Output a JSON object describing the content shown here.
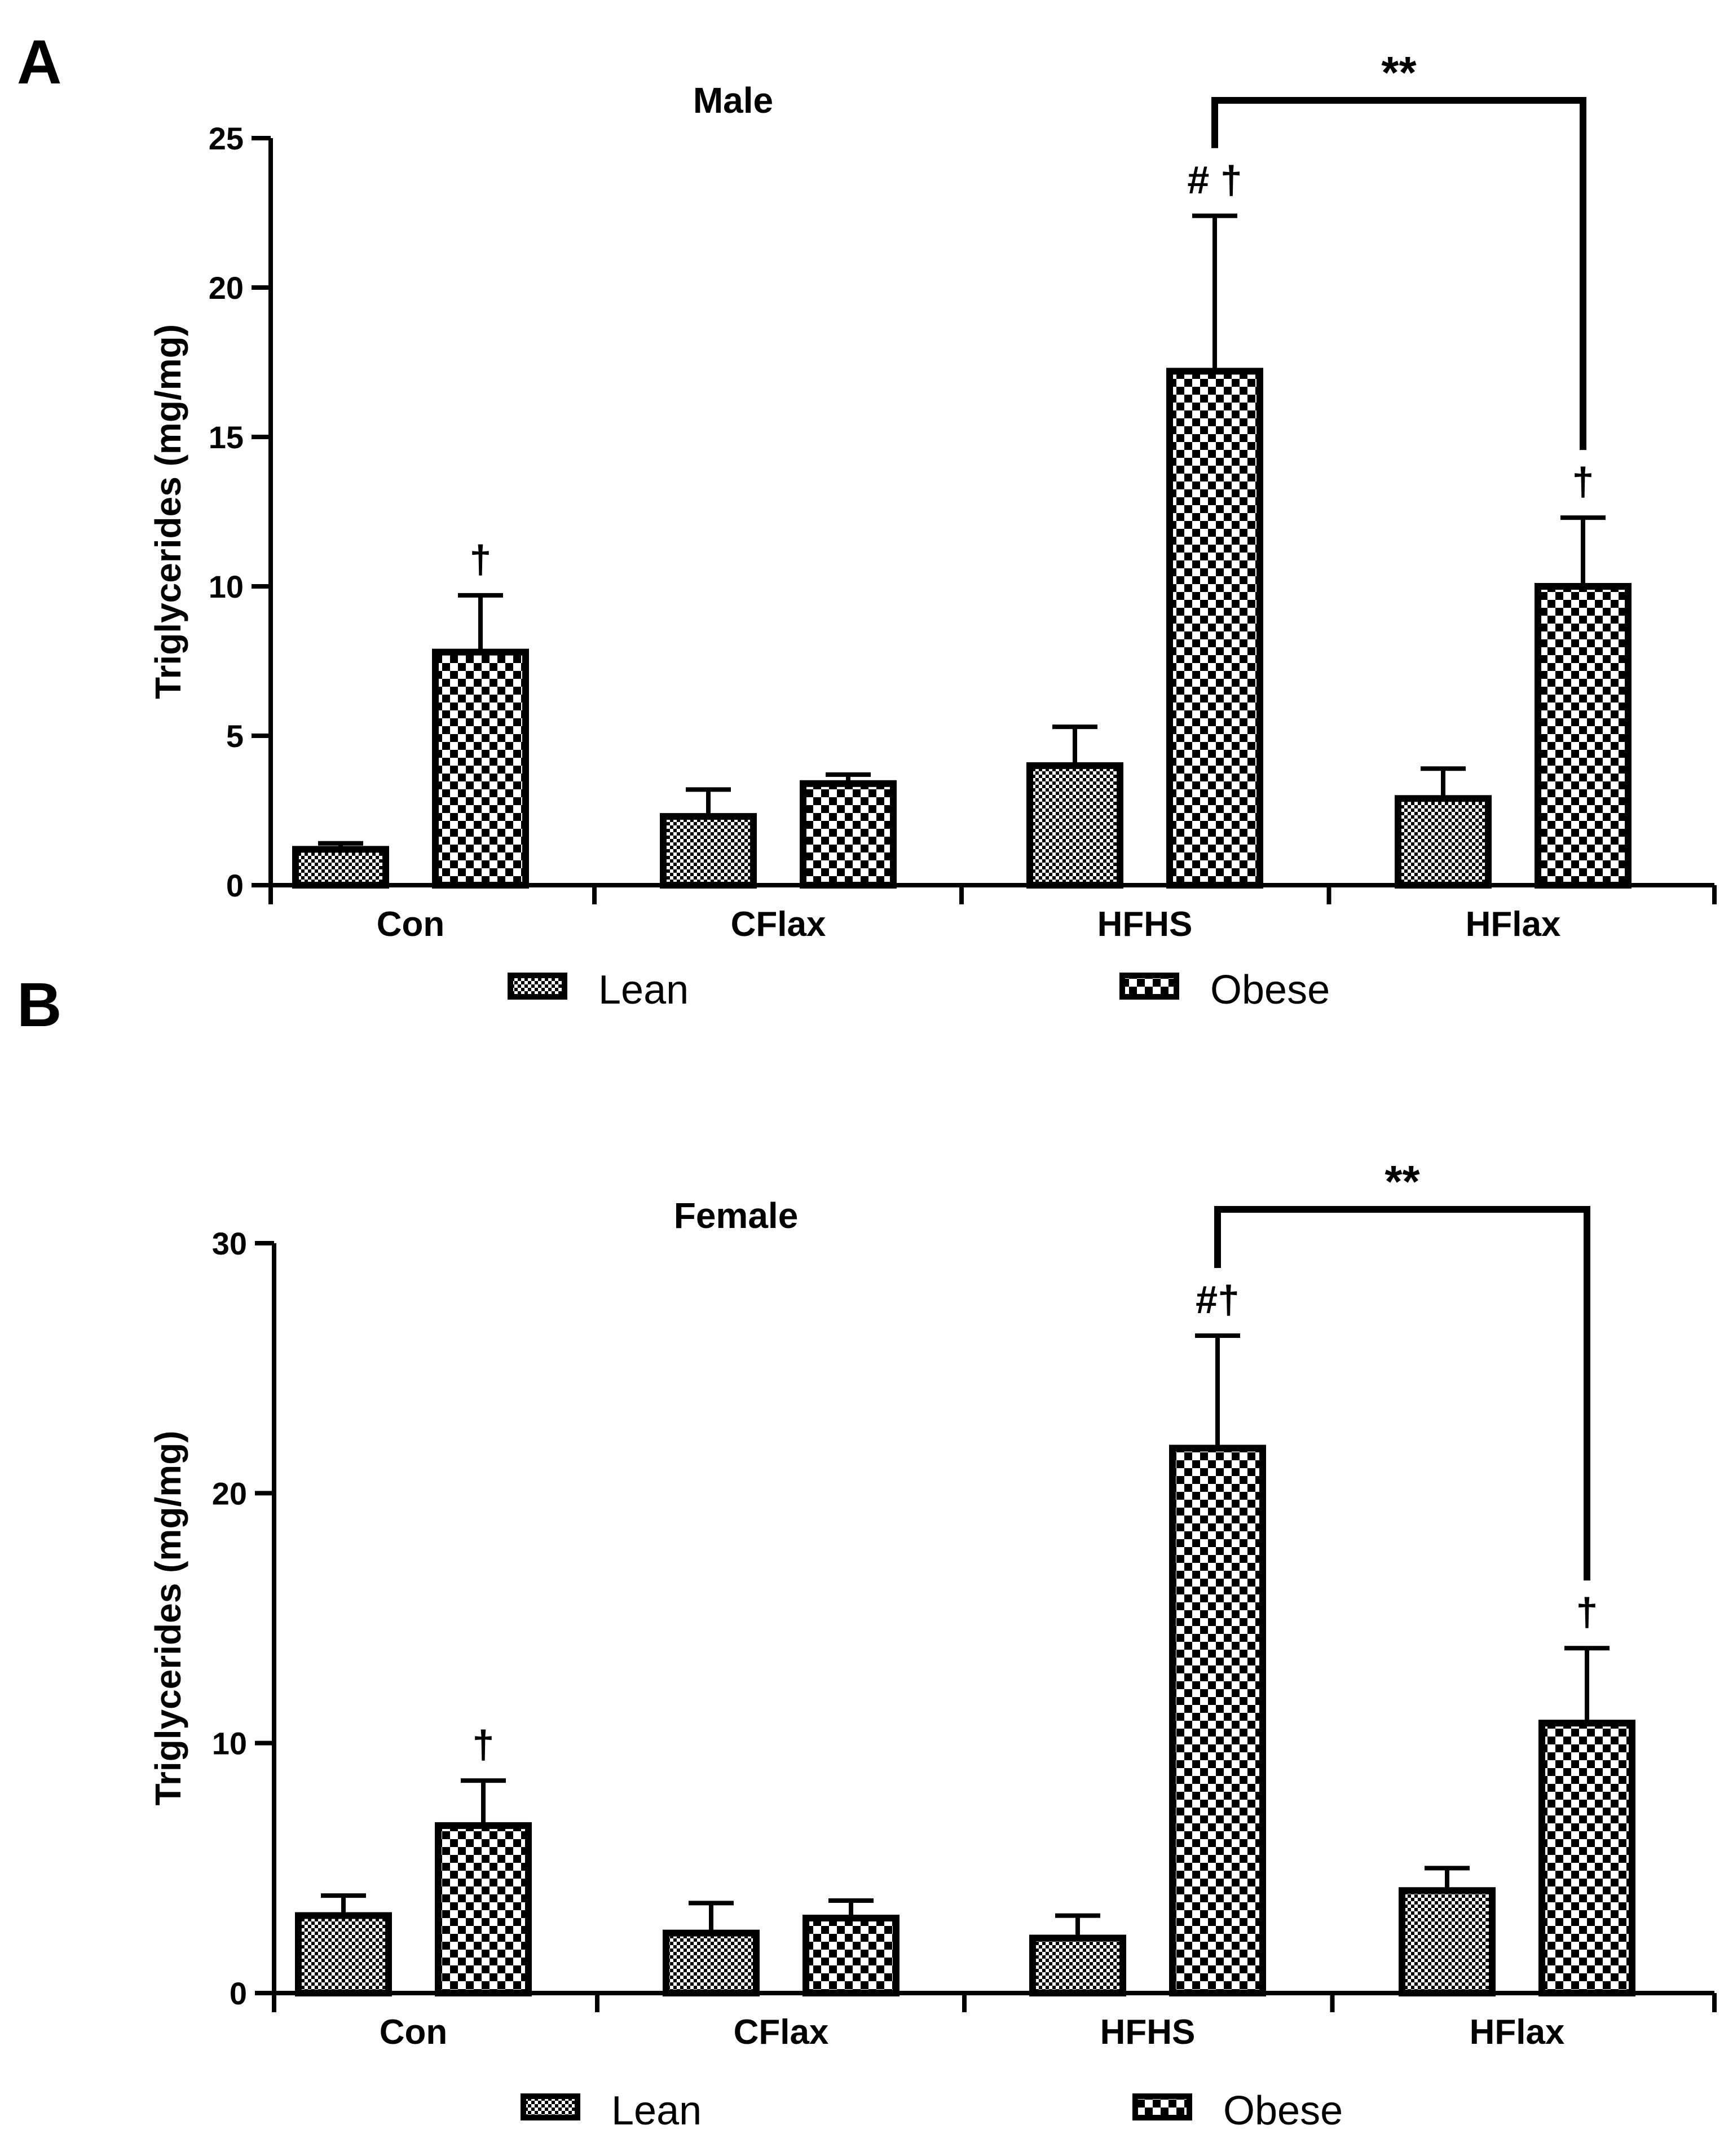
{
  "chart_data": [
    {
      "panel": "A",
      "type": "bar",
      "title": "Male",
      "xlabel": "",
      "ylabel": "Triglycerides (mg/mg)",
      "ylim": [
        0,
        25
      ],
      "yticks": [
        0,
        5,
        10,
        15,
        20,
        25
      ],
      "categories": [
        "Con",
        "CFlax",
        "HFHS",
        "HFlax"
      ],
      "series": [
        {
          "name": "Lean",
          "values": [
            1.2,
            2.3,
            4.0,
            2.9
          ],
          "errors": [
            0.2,
            0.9,
            1.3,
            1.0
          ]
        },
        {
          "name": "Obese",
          "values": [
            7.8,
            3.4,
            17.2,
            10.0
          ],
          "errors": [
            1.9,
            0.3,
            5.2,
            2.3
          ]
        }
      ],
      "bar_annotations": [
        {
          "category": 0,
          "series": 1,
          "text": "†"
        },
        {
          "category": 2,
          "series": 1,
          "text": "# †"
        },
        {
          "category": 3,
          "series": 1,
          "text": "†"
        }
      ],
      "significance": {
        "from": 2,
        "to": 3,
        "series": 1,
        "label": "**"
      },
      "legend": {
        "position": "bottom",
        "items": [
          "Lean",
          "Obese"
        ]
      }
    },
    {
      "panel": "B",
      "type": "bar",
      "title": "Female",
      "xlabel": "",
      "ylabel": "Triglycerides (mg/mg)",
      "ylim": [
        0,
        30
      ],
      "yticks": [
        0,
        10,
        20,
        30
      ],
      "categories": [
        "Con",
        "CFlax",
        "HFHS",
        "HFlax"
      ],
      "series": [
        {
          "name": "Lean",
          "values": [
            3.1,
            2.4,
            2.2,
            4.1
          ],
          "errors": [
            0.8,
            1.2,
            0.9,
            0.9
          ]
        },
        {
          "name": "Obese",
          "values": [
            6.7,
            3.0,
            21.8,
            10.8
          ],
          "errors": [
            1.8,
            0.7,
            4.5,
            3.0
          ]
        }
      ],
      "bar_annotations": [
        {
          "category": 0,
          "series": 1,
          "text": "†"
        },
        {
          "category": 2,
          "series": 1,
          "text": "#†"
        },
        {
          "category": 3,
          "series": 1,
          "text": "†"
        }
      ],
      "significance": {
        "from": 2,
        "to": 3,
        "series": 1,
        "label": "**"
      },
      "legend": {
        "position": "bottom",
        "items": [
          "Lean",
          "Obese"
        ]
      }
    }
  ]
}
